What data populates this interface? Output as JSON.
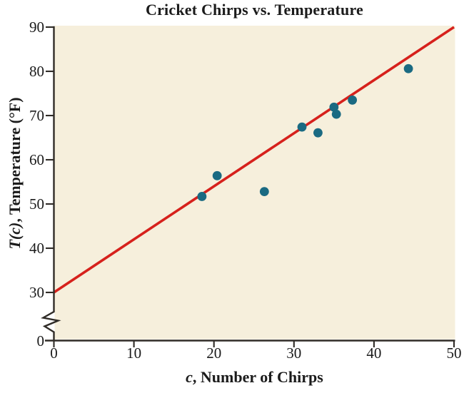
{
  "chart": {
    "title": "Cricket Chirps vs. Temperature",
    "xlabel_var": "c",
    "xlabel_rest": ", Number of Chirps",
    "ylabel_var": "T(c)",
    "ylabel_rest": ", Temperature (°F)"
  },
  "chart_data": {
    "type": "scatter",
    "title": "Cricket Chirps vs. Temperature",
    "xlabel": "c, Number of Chirps",
    "ylabel": "T(c), Temperature (°F)",
    "xlim": [
      0,
      50
    ],
    "ylim_display": [
      30,
      90
    ],
    "x_ticks": [
      0,
      10,
      20,
      30,
      40,
      50
    ],
    "y_ticks": [
      30,
      40,
      50,
      60,
      70,
      80,
      90
    ],
    "y_origin_label": "0",
    "y_axis_break": true,
    "grid": false,
    "legend": "none",
    "points": [
      [
        18.5,
        51.7
      ],
      [
        20.4,
        56.4
      ],
      [
        26.3,
        52.8
      ],
      [
        31.0,
        67.4
      ],
      [
        33.0,
        66.1
      ],
      [
        35.0,
        71.9
      ],
      [
        35.3,
        70.3
      ],
      [
        37.3,
        73.5
      ],
      [
        44.3,
        80.6
      ]
    ],
    "trend_line": {
      "x1": 0,
      "y1": 30,
      "x2": 50,
      "y2": 90
    },
    "colors": {
      "point": "#1a6a82",
      "line": "#d6211c",
      "plot_bg": "#f6efdc",
      "axis": "#302c27",
      "text": "#1b1b1b"
    }
  }
}
